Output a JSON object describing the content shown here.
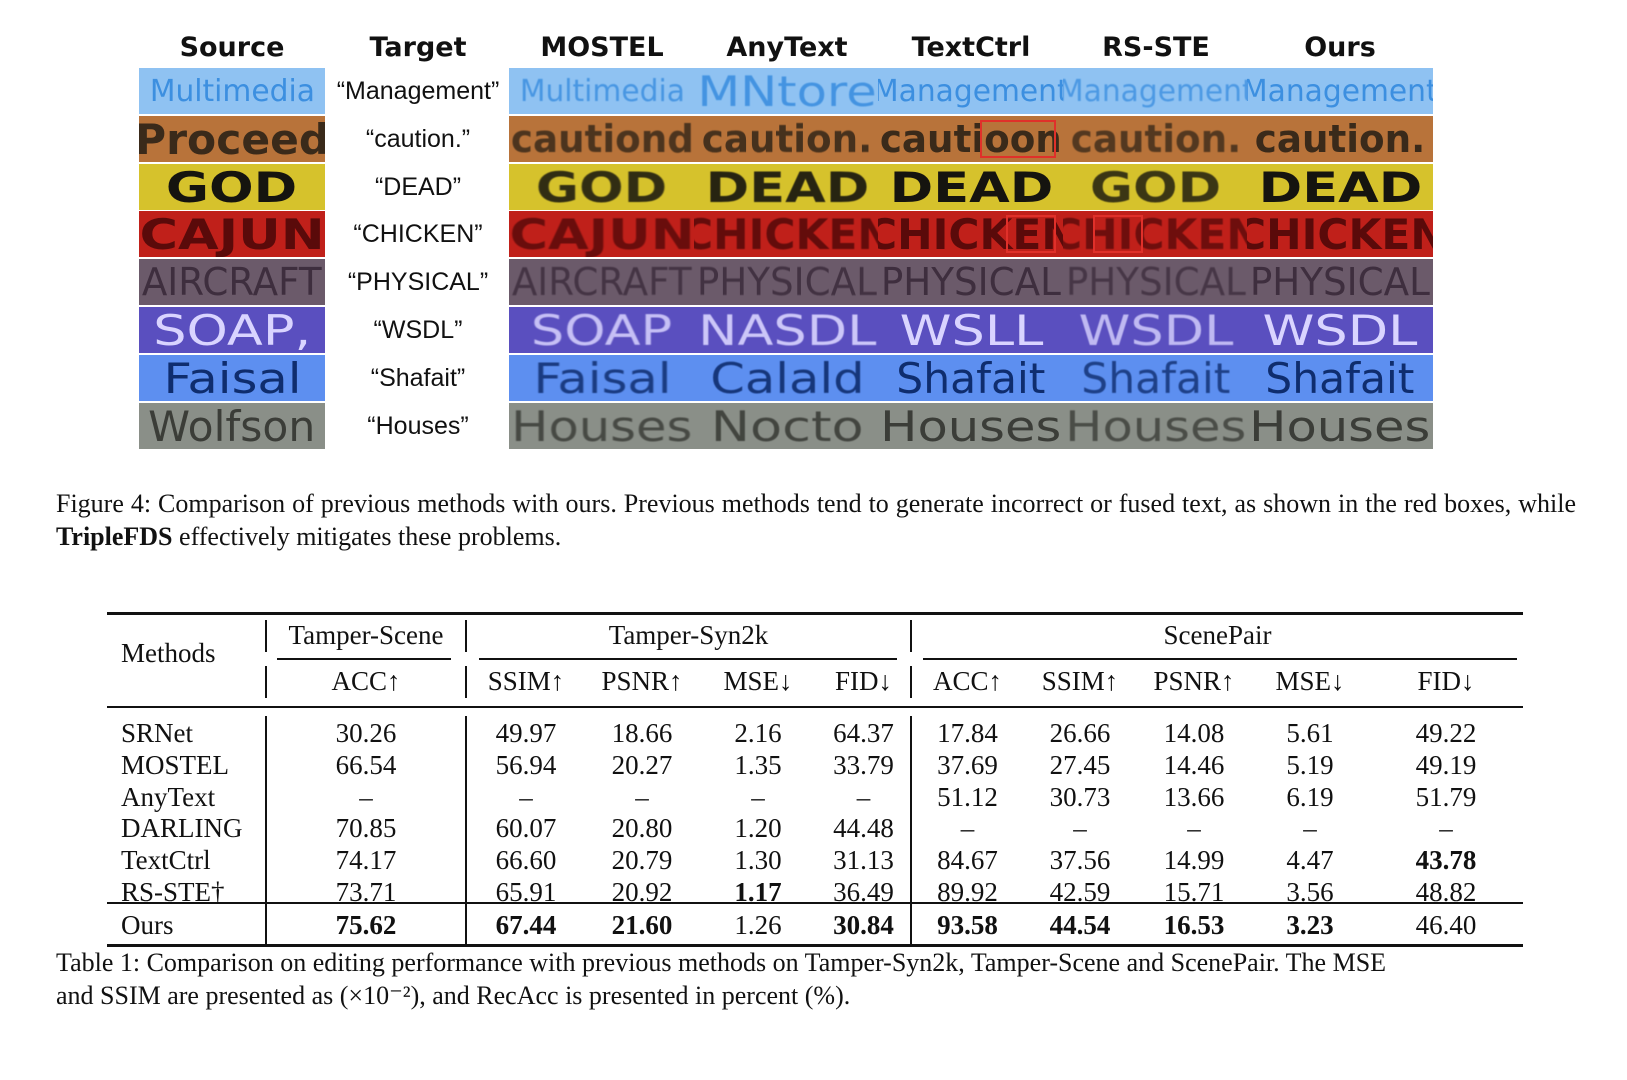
{
  "figure": {
    "columns": [
      "Source",
      "Target",
      "MOSTEL",
      "AnyText",
      "TextCtrl",
      "RS-STE",
      "Ours"
    ],
    "rows": [
      {
        "source": "Multimedia",
        "target": "“Management”",
        "mostel": "Multimedia",
        "anytext": "MNtore",
        "textctrl": "Management",
        "rsste": "Management",
        "ours": "Management",
        "bg": "#8fc2f2",
        "fg": "#3c8fe0"
      },
      {
        "source": "Proceed",
        "target": "“caution.”",
        "mostel": "cautiond",
        "anytext": "caution.",
        "textctrl": "cautioon",
        "rsste": "caution.",
        "ours": "caution.",
        "bg": "#b8733a",
        "fg": "#3a2a1a"
      },
      {
        "source": "GOD",
        "target": "“DEAD”",
        "mostel": "GOD",
        "anytext": "DEAD",
        "textctrl": "DEAD",
        "rsste": "GOD",
        "ours": "DEAD",
        "bg": "#d6c22c",
        "fg": "#15140f"
      },
      {
        "source": "CAJUN",
        "target": "“CHICKEN”",
        "mostel": "CAJUN",
        "anytext": "CHICKEN",
        "textctrl": "CHICKEN",
        "rsste": "CHICKEN",
        "ours": "CHICKEN",
        "bg": "#c0201a",
        "fg": "#5a0a0a"
      },
      {
        "source": "AIRCRAFT",
        "target": "“PHYSICAL”",
        "mostel": "AIRCRAFT",
        "anytext": "PHYSICAL",
        "textctrl": "PHYSICAL",
        "rsste": "PHYSICAL",
        "ours": "PHYSICAL",
        "bg": "#6b5a6a",
        "fg": "#3e2e3e"
      },
      {
        "source": "SOAP,",
        "target": "“WSDL”",
        "mostel": "SOAP",
        "anytext": "NASDL",
        "textctrl": "WSLL",
        "rsste": "WSDL",
        "ours": "WSDL",
        "bg": "#5a4fbf",
        "fg": "#d9d4ff"
      },
      {
        "source": "Faisal",
        "target": "“Shafait”",
        "mostel": "Faisal",
        "anytext": "Calald",
        "textctrl": "Shafait",
        "rsste": "Shafait",
        "ours": "Shafait",
        "bg": "#5d8ff0",
        "fg": "#0f2d6e"
      },
      {
        "source": "Wolfson",
        "target": "“Houses”",
        "mostel": "Houses",
        "anytext": "Nocto",
        "textctrl": "Houses",
        "rsste": "Houses",
        "ours": "Houses",
        "bg": "#8a8f88",
        "fg": "#3b3d38"
      }
    ],
    "highlight_color": "#e0302a"
  },
  "figure_caption": {
    "prefix": "Figure 4: Comparison of previous methods with ours. Previous methods tend to generate incorrect or fused text, as shown in the red boxes, while ",
    "bold": "TripleFDS",
    "suffix": " effectively mitigates these problems."
  },
  "table": {
    "methods_header": "Methods",
    "groups": [
      "Tamper-Scene",
      "Tamper-Syn2k",
      "ScenePair"
    ],
    "metrics": [
      "ACC↑",
      "SSIM↑",
      "PSNR↑",
      "MSE↓",
      "FID↓",
      "ACC↑",
      "SSIM↑",
      "PSNR↑",
      "MSE↓",
      "FID↓"
    ],
    "rows": [
      {
        "method": "SRNet",
        "values": [
          "30.26",
          "49.97",
          "18.66",
          "2.16",
          "64.37",
          "17.84",
          "26.66",
          "14.08",
          "5.61",
          "49.22"
        ],
        "bold": []
      },
      {
        "method": "MOSTEL",
        "values": [
          "66.54",
          "56.94",
          "20.27",
          "1.35",
          "33.79",
          "37.69",
          "27.45",
          "14.46",
          "5.19",
          "49.19"
        ],
        "bold": []
      },
      {
        "method": "AnyText",
        "values": [
          "–",
          "–",
          "–",
          "–",
          "–",
          "51.12",
          "30.73",
          "13.66",
          "6.19",
          "51.79"
        ],
        "bold": []
      },
      {
        "method": "DARLING",
        "values": [
          "70.85",
          "60.07",
          "20.80",
          "1.20",
          "44.48",
          "–",
          "–",
          "–",
          "–",
          "–"
        ],
        "bold": []
      },
      {
        "method": "TextCtrl",
        "values": [
          "74.17",
          "66.60",
          "20.79",
          "1.30",
          "31.13",
          "84.67",
          "37.56",
          "14.99",
          "4.47",
          "43.78"
        ],
        "bold": [
          9
        ]
      },
      {
        "method": "RS-STE†",
        "values": [
          "73.71",
          "65.91",
          "20.92",
          "1.17",
          "36.49",
          "89.92",
          "42.59",
          "15.71",
          "3.56",
          "48.82"
        ],
        "bold": [
          3
        ]
      },
      {
        "method": "Ours",
        "values": [
          "75.62",
          "67.44",
          "21.60",
          "1.26",
          "30.84",
          "93.58",
          "44.54",
          "16.53",
          "3.23",
          "46.40"
        ],
        "bold": [
          0,
          1,
          2,
          4,
          5,
          6,
          7,
          8
        ]
      }
    ]
  },
  "table_caption": {
    "line1": "Table 1: Comparison on editing performance with previous methods on Tamper-Syn2k, Tamper-Scene and ScenePair. The MSE",
    "line2": "and SSIM are presented as (×10⁻²), and RecAcc is presented in percent (%)."
  }
}
